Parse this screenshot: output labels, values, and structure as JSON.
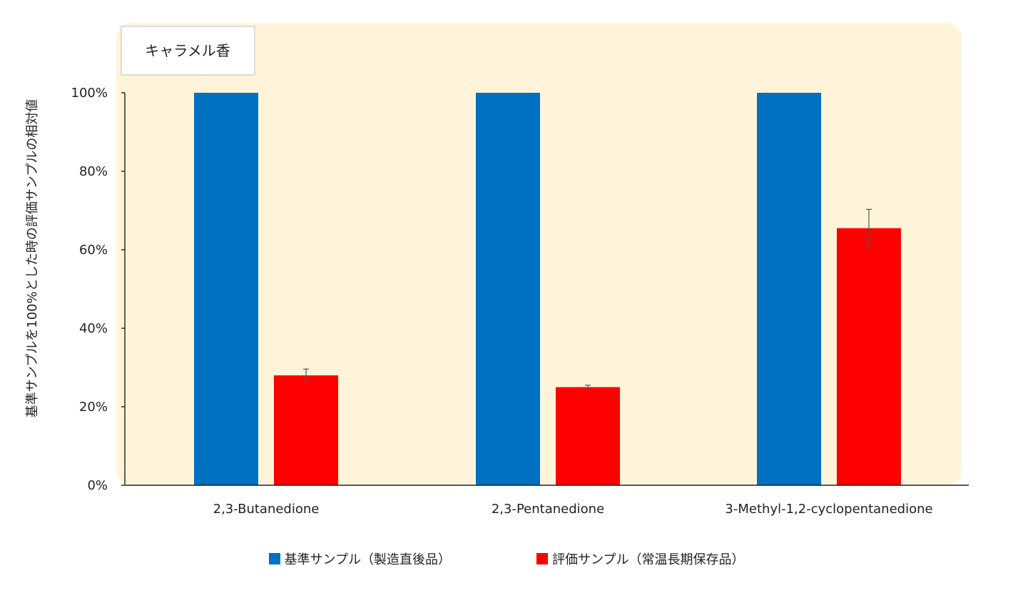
{
  "chart_data": {
    "type": "bar",
    "title": "キャラメル香",
    "ylabel": "基準サンプルを100%とした時の評価サンプルの相対値",
    "xlabel": "",
    "categories": [
      "2,3-Butanedione",
      "2,3-Pentanedione",
      "3-Methyl-1,2-cyclopentanedione"
    ],
    "ylim": [
      0,
      100
    ],
    "yticks": [
      "0%",
      "20%",
      "40%",
      "60%",
      "80%",
      "100%"
    ],
    "ytick_values": [
      0,
      20,
      40,
      60,
      80,
      100
    ],
    "series": [
      {
        "name": "基準サンプル（製造直後品）",
        "color": "#0070c0",
        "values": [
          100,
          100,
          100
        ],
        "errors": [
          0,
          0,
          0
        ]
      },
      {
        "name": "評価サンプル（常温長期保存品）",
        "color": "#ff0000",
        "values": [
          28,
          25,
          65.5
        ],
        "errors": [
          1.6,
          0.5,
          4.8
        ]
      }
    ],
    "plot_background": "#fff4d9",
    "legend_position": "bottom",
    "grid": false
  }
}
